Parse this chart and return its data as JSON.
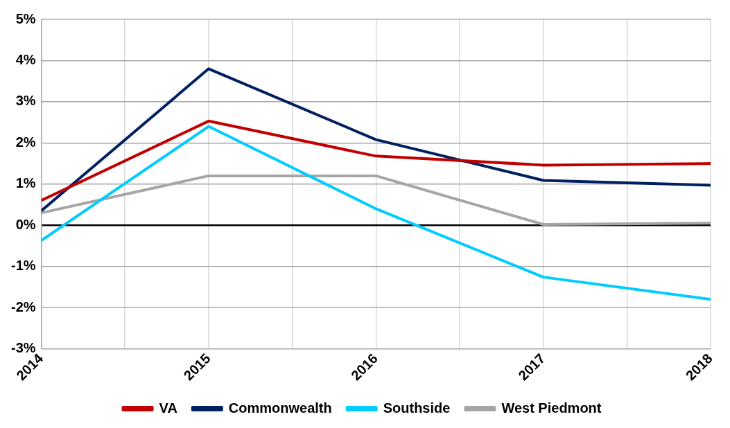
{
  "chart_data": {
    "type": "line",
    "x": [
      2014,
      2015,
      2016,
      2017,
      2018
    ],
    "series": [
      {
        "name": "VA",
        "color": "#c00000",
        "values": [
          0.6,
          2.53,
          1.68,
          1.46,
          1.5
        ]
      },
      {
        "name": "Commonwealth",
        "color": "#002060",
        "values": [
          0.35,
          3.8,
          2.08,
          1.09,
          0.97
        ]
      },
      {
        "name": "Southside",
        "color": "#00ccff",
        "values": [
          -0.37,
          2.4,
          0.4,
          -1.26,
          -1.8
        ]
      },
      {
        "name": "West Piedmont",
        "color": "#a6a6a6",
        "values": [
          0.3,
          1.2,
          1.2,
          0.02,
          0.05
        ]
      }
    ],
    "xlim": [
      2014,
      2018
    ],
    "xticks": [
      2014,
      {
        "value": 2014.5,
        "label": null
      },
      2015,
      {
        "value": 2015.5,
        "label": null
      },
      2016,
      {
        "value": 2016.5,
        "label": null
      },
      2017,
      {
        "value": 2017.5,
        "label": null
      },
      2018
    ],
    "ylim": [
      -3,
      5
    ],
    "yticks": [
      {
        "value": -3,
        "label": "-3%"
      },
      {
        "value": -2,
        "label": "-2%"
      },
      {
        "value": -1,
        "label": "-1%"
      },
      {
        "value": 0,
        "label": "0%"
      },
      {
        "value": 1,
        "label": "1%"
      },
      {
        "value": 2,
        "label": "2%"
      },
      {
        "value": 3,
        "label": "3%"
      },
      {
        "value": 4,
        "label": "4%"
      },
      {
        "value": 5,
        "label": "5%"
      }
    ],
    "grid": true,
    "legend": "bottom",
    "marker": "none",
    "line_style": "solid"
  }
}
